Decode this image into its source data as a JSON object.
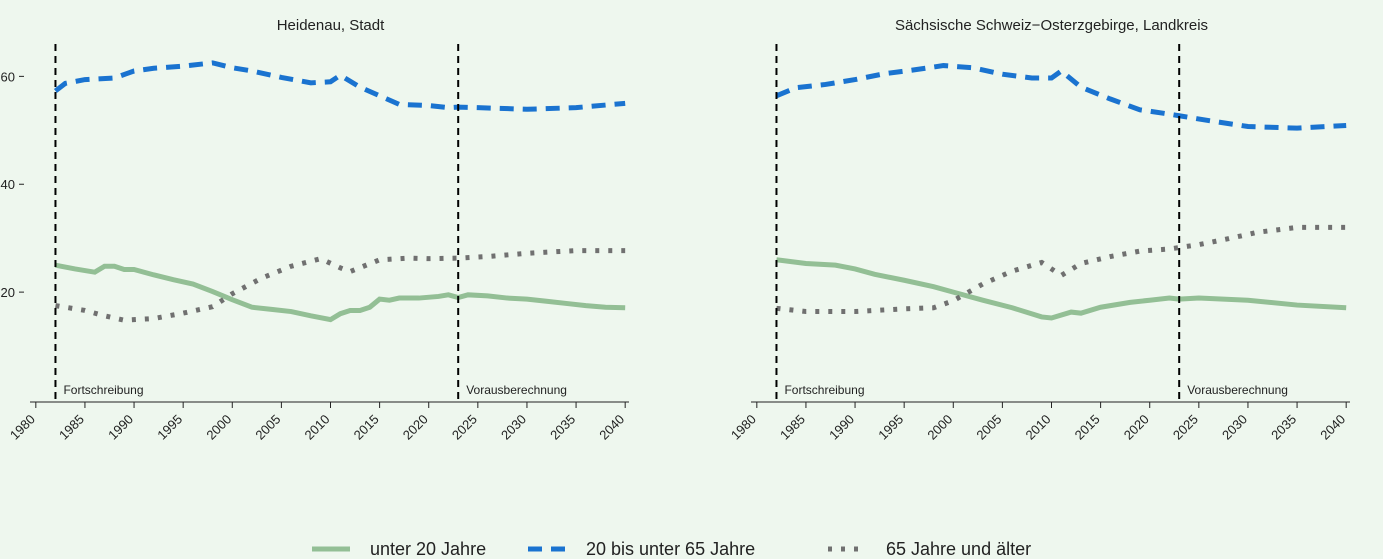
{
  "chart_data": [
    {
      "type": "line",
      "title": "Heidenau, Stadt",
      "xlim": [
        1979,
        2041
      ],
      "xticks": [
        1980,
        1985,
        1990,
        1995,
        2000,
        2005,
        2010,
        2015,
        2020,
        2025,
        2030,
        2035,
        2040
      ],
      "ylim": [
        0,
        66
      ],
      "yticks": [
        20,
        40,
        60
      ],
      "vlines": [
        {
          "x": 1982,
          "label": "Fortschreibung"
        },
        {
          "x": 2023,
          "label": "Vorausberechnung"
        }
      ],
      "series": [
        {
          "name": "unter 20 Jahre",
          "color": "#93bf95",
          "linestyle": "solid",
          "x": [
            1982,
            1984,
            1986,
            1987,
            1988,
            1989,
            1990,
            1992,
            1994,
            1996,
            1998,
            2000,
            2002,
            2004,
            2006,
            2008,
            2010,
            2011,
            2012,
            2013,
            2014,
            2015,
            2016,
            2017,
            2019,
            2021,
            2022,
            2023,
            2024,
            2026,
            2028,
            2030,
            2032,
            2034,
            2036,
            2038,
            2040
          ],
          "values": [
            25.0,
            24.3,
            23.7,
            24.8,
            24.8,
            24.2,
            24.2,
            23.2,
            22.3,
            21.5,
            20.1,
            18.6,
            17.2,
            16.8,
            16.4,
            15.6,
            14.9,
            16.0,
            16.6,
            16.6,
            17.2,
            18.7,
            18.5,
            18.9,
            18.9,
            19.2,
            19.5,
            19.0,
            19.5,
            19.3,
            18.9,
            18.7,
            18.3,
            17.9,
            17.5,
            17.2,
            17.1
          ]
        },
        {
          "name": "20 bis unter 65 Jahre",
          "color": "#1a73d0",
          "linestyle": "dashed",
          "x": [
            1982,
            1983,
            1985,
            1988,
            1990,
            1992,
            1995,
            1998,
            2000,
            2002,
            2005,
            2008,
            2010,
            2011,
            2013,
            2015,
            2017,
            2020,
            2022,
            2023,
            2025,
            2030,
            2035,
            2040
          ],
          "values": [
            57.3,
            58.7,
            59.4,
            59.7,
            61.0,
            61.5,
            61.9,
            62.5,
            61.6,
            61.0,
            59.8,
            58.8,
            59.0,
            60.2,
            58.0,
            56.4,
            54.8,
            54.6,
            54.2,
            54.3,
            54.2,
            53.9,
            54.2,
            55.0
          ]
        },
        {
          "name": "65 Jahre und älter",
          "color": "#707070",
          "linestyle": "dotted",
          "x": [
            1982,
            1985,
            1987,
            1989,
            1992,
            1995,
            1998,
            2000,
            2003,
            2006,
            2009,
            2011,
            2012,
            2015,
            2018,
            2020,
            2023,
            2026,
            2030,
            2035,
            2040
          ],
          "values": [
            17.5,
            16.6,
            15.6,
            14.8,
            15.1,
            16.1,
            17.3,
            19.7,
            22.6,
            24.8,
            26.2,
            24.5,
            23.8,
            26.0,
            26.3,
            26.2,
            26.3,
            26.6,
            27.2,
            27.7,
            27.7
          ]
        }
      ]
    },
    {
      "type": "line",
      "title": "Sächsische Schweiz−Osterzgebirge, Landkreis",
      "xlim": [
        1979,
        2041
      ],
      "xticks": [
        1980,
        1985,
        1990,
        1995,
        2000,
        2005,
        2010,
        2015,
        2020,
        2025,
        2030,
        2035,
        2040
      ],
      "ylim": [
        0,
        66
      ],
      "vlines": [
        {
          "x": 1982,
          "label": "Fortschreibung"
        },
        {
          "x": 2023,
          "label": "Vorausberechnung"
        }
      ],
      "series": [
        {
          "color": "#93bf95",
          "linestyle": "solid",
          "x": [
            1982,
            1985,
            1988,
            1990,
            1992,
            1995,
            1998,
            2000,
            2003,
            2006,
            2009,
            2010,
            2012,
            2013,
            2015,
            2018,
            2020,
            2022,
            2023,
            2025,
            2030,
            2035,
            2040
          ],
          "values": [
            26.0,
            25.3,
            25.0,
            24.3,
            23.3,
            22.2,
            21.0,
            20.0,
            18.5,
            17.1,
            15.4,
            15.2,
            16.3,
            16.1,
            17.2,
            18.1,
            18.5,
            18.9,
            18.7,
            18.9,
            18.5,
            17.6,
            17.1
          ]
        },
        {
          "color": "#1a73d0",
          "linestyle": "dashed",
          "x": [
            1982,
            1984,
            1987,
            1990,
            1993,
            1996,
            1999,
            2002,
            2005,
            2008,
            2010,
            2011,
            2013,
            2016,
            2019,
            2022,
            2023,
            2026,
            2030,
            2035,
            2040
          ],
          "values": [
            56.4,
            57.9,
            58.5,
            59.4,
            60.5,
            61.2,
            62.0,
            61.6,
            60.4,
            59.7,
            59.7,
            61.0,
            58.0,
            55.8,
            53.8,
            53.0,
            52.7,
            51.8,
            50.7,
            50.4,
            50.9
          ]
        },
        {
          "color": "#707070",
          "linestyle": "dotted",
          "x": [
            1982,
            1985,
            1990,
            1995,
            1998,
            2000,
            2003,
            2006,
            2009,
            2011,
            2013,
            2016,
            2019,
            2022,
            2025,
            2028,
            2031,
            2035,
            2040
          ],
          "values": [
            17.0,
            16.4,
            16.4,
            16.9,
            17.1,
            18.4,
            21.5,
            23.9,
            25.5,
            23.1,
            25.3,
            26.6,
            27.6,
            28.0,
            28.8,
            29.9,
            31.1,
            32.0,
            32.0
          ]
        }
      ]
    }
  ]
}
